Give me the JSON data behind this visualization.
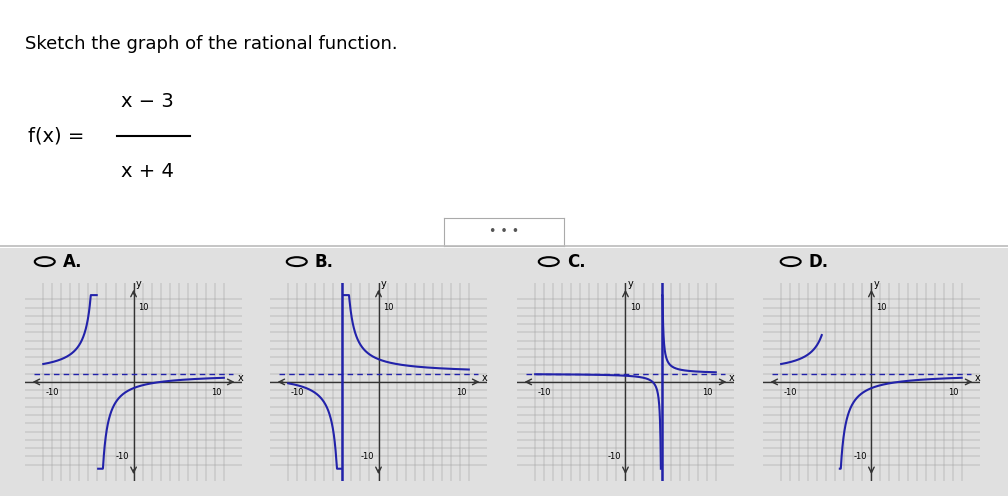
{
  "title": "Sketch the graph of the rational function.",
  "background_top": "#f0f0f0",
  "background_bottom": "#e8e8e8",
  "grid_color": "#aaaaaa",
  "axis_color": "#444444",
  "curve_color": "#2222aa",
  "asymptote_color": "#2222aa",
  "dashed_color": "#2222aa",
  "xlim": [
    -10,
    10
  ],
  "ylim": [
    -10,
    10
  ],
  "panel_bg": "#e2e2e2",
  "options": [
    "A.",
    "B.",
    "C.",
    "D."
  ],
  "graphs": [
    {
      "va": -4,
      "xi": 3,
      "show_va_line": false,
      "func": "A"
    },
    {
      "va": -4,
      "xi": -11,
      "show_va_line": true,
      "func": "B"
    },
    {
      "va": 4,
      "xi": 3,
      "show_va_line": true,
      "func": "C"
    },
    {
      "va": -4,
      "xi": 3,
      "show_va_line": false,
      "func": "D"
    }
  ]
}
